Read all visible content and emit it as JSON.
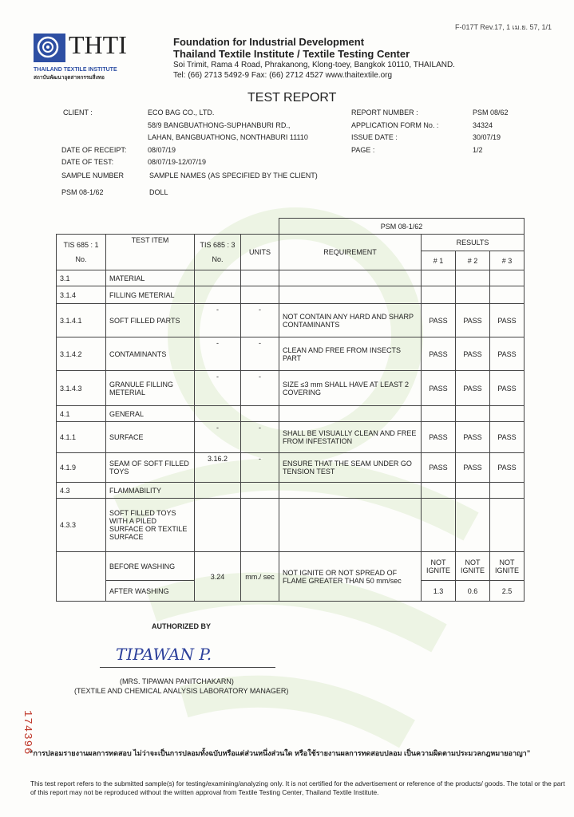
{
  "form_code": "F-017T Rev.17, 1 เม.ย. 57, 1/1",
  "logo": {
    "text": "THTI",
    "sub_en": "THAILAND TEXTILE INSTITUTE",
    "sub_th": "สถาบันพัฒนาอุตสาหกรรมสิ่งทอ"
  },
  "header": {
    "line1": "Foundation for Industrial Development",
    "line2": "Thailand Textile Institute / Textile Testing Center",
    "address": "Soi Trimit, Rama 4 Road, Phrakanong, Klong-toey, Bangkok 10110, THAILAND.",
    "contact": "Tel: (66) 2713 5492-9  Fax: (66) 2712 4527  www.thaitextile.org"
  },
  "title": "TEST REPORT",
  "info": {
    "client_label": "CLIENT :",
    "client": "ECO BAG CO., LTD.",
    "addr1": "58/9 BANGBUATHONG-SUPHANBURI RD.,",
    "addr2": "LAHAN, BANGBUATHONG, NONTHABURI  11110",
    "receipt_label": "DATE OF RECEIPT:",
    "receipt": "08/07/19",
    "test_label": "DATE OF TEST:",
    "test": "08/07/19-12/07/19",
    "sample_label": "SAMPLE NUMBER",
    "sample_names": "SAMPLE NAMES  (AS SPECIFIED BY THE CLIENT)",
    "sample_no": "PSM 08-1/62",
    "sample_name": "DOLL",
    "report_label": "REPORT NUMBER :",
    "report": "PSM 08/62",
    "app_label": "APPLICATION FORM No. :",
    "app": "34324",
    "issue_label": "ISSUE DATE :",
    "issue": "30/07/19",
    "page_label": "PAGE :",
    "page": "1/2"
  },
  "table": {
    "sample_header": "PSM 08-1/62",
    "h_tis1": "TIS 685 : 1",
    "h_no1": "No.",
    "h_item": "TEST ITEM",
    "h_tis3": "TIS 685 : 3",
    "h_no3": "No.",
    "h_units": "UNITS",
    "h_req": "REQUIREMENT",
    "h_results": "RESULTS",
    "h_r1": "# 1",
    "h_r2": "# 2",
    "h_r3": "# 3",
    "rows": [
      {
        "no": "3.1",
        "item": "MATERIAL",
        "tis": "",
        "units": "",
        "req": "",
        "r1": "",
        "r2": "",
        "r3": ""
      },
      {
        "no": "3.1.4",
        "item": "FILLING METERIAL",
        "tis": "",
        "units": "",
        "req": "",
        "r1": "",
        "r2": "",
        "r3": ""
      },
      {
        "no": "3.1.4.1",
        "item": "SOFT FILLED PARTS",
        "tis": "-",
        "units": "-",
        "req": "NOT CONTAIN ANY HARD AND SHARP CONTAMINANTS",
        "r1": "PASS",
        "r2": "PASS",
        "r3": "PASS"
      },
      {
        "no": "3.1.4.2",
        "item": "CONTAMINANTS",
        "tis": "-",
        "units": "-",
        "req": "CLEAN AND FREE FROM INSECTS PART",
        "r1": "PASS",
        "r2": "PASS",
        "r3": "PASS"
      },
      {
        "no": "3.1.4.3",
        "item": "GRANULE FILLING METERIAL",
        "tis": "-",
        "units": "-",
        "req": "SIZE ≤3 mm SHALL HAVE AT LEAST 2 COVERING",
        "r1": "PASS",
        "r2": "PASS",
        "r3": "PASS"
      },
      {
        "no": "4.1",
        "item": "GENERAL",
        "tis": "",
        "units": "",
        "req": "",
        "r1": "",
        "r2": "",
        "r3": ""
      },
      {
        "no": "4.1.1",
        "item": "SURFACE",
        "tis": "-",
        "units": "-",
        "req": "SHALL BE VISUALLY CLEAN AND FREE FROM INFESTATION",
        "r1": "PASS",
        "r2": "PASS",
        "r3": "PASS"
      },
      {
        "no": "4.1.9",
        "item": "SEAM OF SOFT FILLED TOYS",
        "tis": "3.16.2",
        "units": "-",
        "req": "ENSURE THAT THE  SEAM UNDER GO TENSION TEST",
        "r1": "PASS",
        "r2": "PASS",
        "r3": "PASS"
      },
      {
        "no": "4.3",
        "item": "FLAMMABILITY",
        "tis": "",
        "units": "",
        "req": "",
        "r1": "",
        "r2": "",
        "r3": ""
      },
      {
        "no": "4.3.3",
        "item": "SOFT FILLED TOYS WITH A PILED SURFACE OR TEXTILE SURFACE",
        "tis": "",
        "units": "",
        "req": "",
        "r1": "",
        "r2": "",
        "r3": ""
      }
    ],
    "flame": {
      "before": "BEFORE WASHING",
      "after": "AFTER WASHING",
      "tis": "3.24",
      "units": "mm./ sec",
      "req": "NOT IGNITE OR NOT SPREAD OF FLAME GREATER THAN 50 mm/sec",
      "b1": "NOT IGNITE",
      "b2": "NOT IGNITE",
      "b3": "NOT IGNITE",
      "a1": "1.3",
      "a2": "0.6",
      "a3": "2.5"
    }
  },
  "auth": {
    "label": "AUTHORIZED BY",
    "signature": "TIPAWAN  P.",
    "name": "(MRS. TIPAWAN  PANITCHAKARN)",
    "position": "(TEXTILE AND CHEMICAL ANALYSIS LABORATORY MANAGER)"
  },
  "serial": "174396",
  "thai_notice": "“การปลอมรายงานผลการทดสอบ ไม่ว่าจะเป็นการปลอมทั้งฉบับหรือแต่ส่วนหนึ่งส่วนใด หรือใช้รายงานผลการทดสอบปลอม เป็นความผิดตามประมวลกฎหมายอาญา”",
  "disclaimer": "This test report  refers to the submitted sample(s) for testing/examining/analyzing only. It is not certified for the advertisement or reference of the products/ goods. The total or the part of this report may not be reproduced without the written approval from Textile Testing Center, Thailand Textile Institute.",
  "colors": {
    "logo_blue": "#2e4fa3",
    "watermark": "#9cc86a",
    "serial_red": "#c0392b",
    "signature_blue": "#2b3f9a"
  }
}
